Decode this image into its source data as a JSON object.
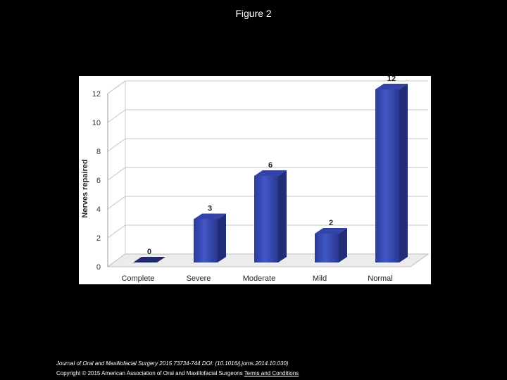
{
  "page": {
    "title": "Figure 2"
  },
  "footer": {
    "journal": "Journal of Oral and Maxillofacial Surgery 2015 73734-744",
    "doi": "DOI: (10.1016/j.joms.2014.10.030)",
    "copyright": "Copyright © 2015 American Association of Oral and Maxillofacial Surgeons",
    "terms_link": "Terms and Conditions"
  },
  "chart_data": {
    "type": "bar",
    "title": "",
    "xlabel": "",
    "ylabel": "Nerves repaired",
    "categories": [
      "Complete",
      "Severe",
      "Moderate",
      "Mild",
      "Normal"
    ],
    "values": [
      0,
      3,
      6,
      2,
      12
    ],
    "data_labels": [
      "0",
      "3",
      "6",
      "2",
      "12"
    ],
    "ylim": [
      0,
      12
    ],
    "yticks": [
      "0",
      "2",
      "4",
      "6",
      "8",
      "10",
      "12"
    ],
    "grid": true,
    "legend": "none",
    "bar_color": "#3a4fb8",
    "style": "3d"
  }
}
